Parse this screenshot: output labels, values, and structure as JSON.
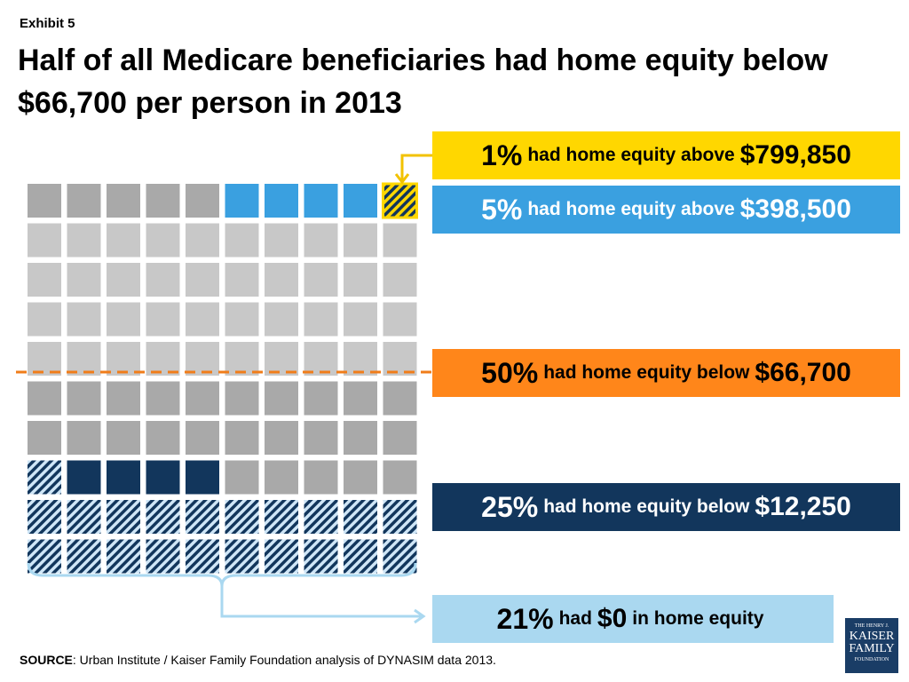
{
  "header": {
    "exhibit": "Exhibit 5",
    "title": "Half of all Medicare beneficiaries had home equity below $66,700 per person in 2013"
  },
  "colors": {
    "gray": "#a9a9a9",
    "light_gray": "#c8c8c8",
    "blue": "#3aa0e0",
    "navy": "#12365c",
    "yellow": "#ffd700",
    "orange": "#ff861a",
    "light_blue": "#aad8f0"
  },
  "callouts": {
    "top1": {
      "pct": "1%",
      "text": "had home equity above",
      "amount": "$799,850"
    },
    "top5": {
      "pct": "5%",
      "text": "had home equity above",
      "amount": "$398,500"
    },
    "median": {
      "pct": "50%",
      "text": "had home equity below",
      "amount": "$66,700"
    },
    "bottom25": {
      "pct": "25%",
      "text": "had home equity below",
      "amount": "$12,250"
    },
    "zero": {
      "pct": "21%",
      "text_before": "had",
      "amount": "$0",
      "text_after": "in home equity"
    }
  },
  "chart_data": {
    "type": "waffle",
    "grid": {
      "rows": 10,
      "cols": 10
    },
    "segments": [
      {
        "name": "had home equity above $799,850",
        "percent": 1,
        "style": "yellow-hatched"
      },
      {
        "name": "had home equity above $398,500",
        "percent": 5,
        "style": "blue"
      },
      {
        "name": "had home equity below $66,700",
        "percent": 50,
        "style": "dashed-line-marker"
      },
      {
        "name": "had home equity below $12,250",
        "percent": 25,
        "style": "navy"
      },
      {
        "name": "had $0 in home equity",
        "percent": 21,
        "style": "navy-hatched"
      }
    ],
    "cell_styles": [
      [
        "gray",
        "gray",
        "gray",
        "gray",
        "gray",
        "blue",
        "blue",
        "blue",
        "blue",
        "yellow_hatch"
      ],
      [
        "light",
        "light",
        "light",
        "light",
        "light",
        "light",
        "light",
        "light",
        "light",
        "light"
      ],
      [
        "light",
        "light",
        "light",
        "light",
        "light",
        "light",
        "light",
        "light",
        "light",
        "light"
      ],
      [
        "light",
        "light",
        "light",
        "light",
        "light",
        "light",
        "light",
        "light",
        "light",
        "light"
      ],
      [
        "light",
        "light",
        "light",
        "light",
        "light",
        "light",
        "light",
        "light",
        "light",
        "light"
      ],
      [
        "gray",
        "gray",
        "gray",
        "gray",
        "gray",
        "gray",
        "gray",
        "gray",
        "gray",
        "gray"
      ],
      [
        "gray",
        "gray",
        "gray",
        "gray",
        "gray",
        "gray",
        "gray",
        "gray",
        "gray",
        "gray"
      ],
      [
        "navy_hatch",
        "navy",
        "navy",
        "navy",
        "navy",
        "gray",
        "gray",
        "gray",
        "gray",
        "gray"
      ],
      [
        "navy_hatch",
        "navy_hatch",
        "navy_hatch",
        "navy_hatch",
        "navy_hatch",
        "navy_hatch",
        "navy_hatch",
        "navy_hatch",
        "navy_hatch",
        "navy_hatch"
      ],
      [
        "navy_hatch",
        "navy_hatch",
        "navy_hatch",
        "navy_hatch",
        "navy_hatch",
        "navy_hatch",
        "navy_hatch",
        "navy_hatch",
        "navy_hatch",
        "navy_hatch"
      ]
    ]
  },
  "footer": {
    "source_label": "SOURCE",
    "source_text": ": Urban Institute / Kaiser Family Foundation analysis of DYNASIM data 2013.",
    "logo_line1": "THE HENRY J.",
    "logo_line2": "KAISER",
    "logo_line3": "FAMILY",
    "logo_line4": "FOUNDATION"
  }
}
